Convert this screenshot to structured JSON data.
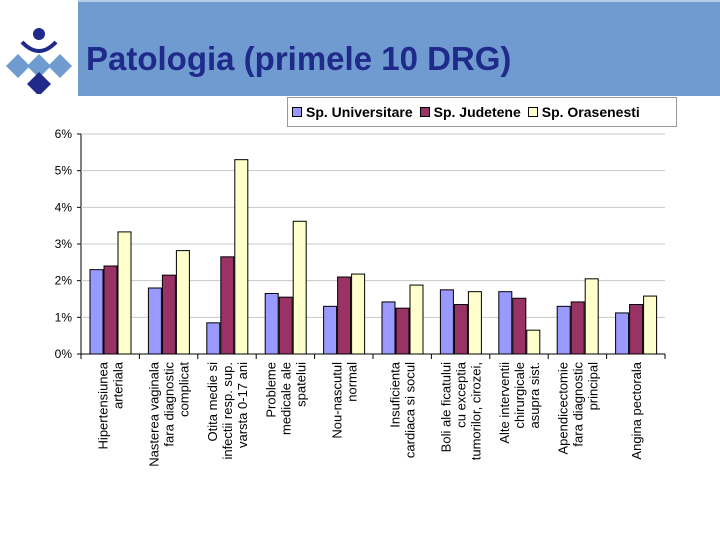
{
  "slide": {
    "title": "Patologia (primele 10 DRG)"
  },
  "logo": {
    "icon": "diamond-logo-icon"
  },
  "colors": {
    "universitare": "#9999ff",
    "judetene": "#993366",
    "orasenesti": "#ffffcc",
    "title": "#1f2a8a",
    "title_bar": "#6f9bd1"
  },
  "chart_data": {
    "type": "bar",
    "title": "",
    "xlabel": "",
    "ylabel": "",
    "ylim": [
      0,
      6
    ],
    "yticks": [
      "0%",
      "1%",
      "2%",
      "3%",
      "4%",
      "5%",
      "6%"
    ],
    "legend_position": "top-right",
    "grid": true,
    "categories": [
      [
        "Hipertensiunea",
        "arteriala"
      ],
      [
        "Nasterea vaginala",
        "fara diagnostic",
        "complicat"
      ],
      [
        "Otita medie si",
        "infectii resp. sup.",
        "varsta 0-17 ani"
      ],
      [
        "Probleme",
        "medicale ale",
        "spatelui"
      ],
      [
        "Nou-nascutul",
        "normal"
      ],
      [
        "Insuficienta",
        "cardiaca si socul"
      ],
      [
        "Boli ale ficatului",
        "cu exceptia",
        "tumorilor, cirozei,"
      ],
      [
        "Alte interventii",
        "chirurgicale",
        "asupra sist."
      ],
      [
        "Apendicectomie",
        "fara diagnostic",
        "principal"
      ],
      [
        "Angina pectorala"
      ]
    ],
    "series": [
      {
        "name": "Sp. Universitare",
        "values": [
          2.3,
          1.8,
          0.85,
          1.65,
          1.3,
          1.42,
          1.75,
          1.7,
          1.3,
          1.12
        ]
      },
      {
        "name": "Sp. Judetene",
        "values": [
          2.4,
          2.15,
          2.65,
          1.55,
          2.1,
          1.25,
          1.35,
          1.52,
          1.42,
          1.35
        ]
      },
      {
        "name": "Sp. Orasenesti",
        "values": [
          3.33,
          2.82,
          5.3,
          3.62,
          2.18,
          1.88,
          1.7,
          0.65,
          2.05,
          1.58
        ]
      }
    ]
  }
}
